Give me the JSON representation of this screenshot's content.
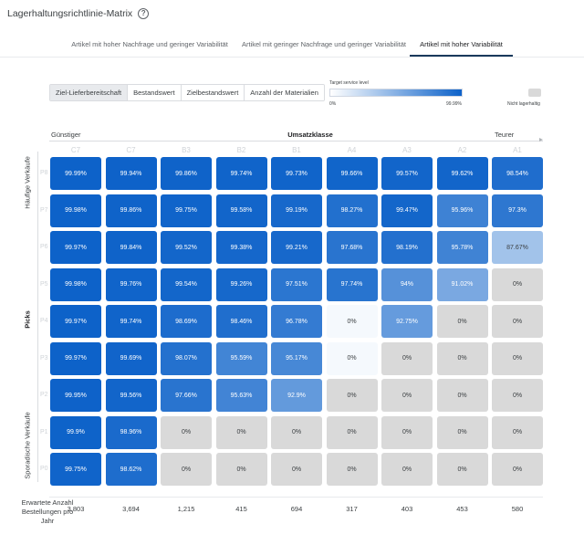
{
  "title": "Lagerhaltungsrichtlinie-Matrix",
  "help_icon": "help-circle-icon",
  "tabs": [
    {
      "label": "Artikel mit hoher Nachfrage und geringer Variabilität",
      "active": false
    },
    {
      "label": "Artikel mit geringer Nachfrage und geringer Variabilität",
      "active": false
    },
    {
      "label": "Artikel mit hoher Variabilität",
      "active": true
    }
  ],
  "metric_toggle": [
    {
      "label": "Ziel-Lieferbereitschaft",
      "active": true
    },
    {
      "label": "Bestandswert",
      "active": false
    },
    {
      "label": "Zielbestandswert",
      "active": false
    },
    {
      "label": "Anzahl der Materialien",
      "active": false
    }
  ],
  "legend": {
    "title": "Target service level",
    "min_label": "0%",
    "max_label": "99.99%",
    "na_label": "Nicht lagerhaltig",
    "color_low": "#ffffff",
    "color_high": "#0d62c9",
    "color_na": "#d9d9d9"
  },
  "x_axis": {
    "title": "Umsatzklasse",
    "low_label": "Günstiger",
    "high_label": "Teurer"
  },
  "y_axis": {
    "title": "Picks",
    "high_label": "Häufige Verkäufe",
    "low_label": "Sporadische Verkäufe"
  },
  "columns": [
    "C7",
    "C7",
    "B3",
    "B2",
    "B1",
    "A4",
    "A3",
    "A2",
    "A1"
  ],
  "rows": [
    {
      "label": "P8",
      "cells": [
        {
          "text": "99.99%",
          "value": 99.99
        },
        {
          "text": "99.94%",
          "value": 99.94
        },
        {
          "text": "99.86%",
          "value": 99.86
        },
        {
          "text": "99.74%",
          "value": 99.74
        },
        {
          "text": "99.73%",
          "value": 99.73
        },
        {
          "text": "99.66%",
          "value": 99.66
        },
        {
          "text": "99.57%",
          "value": 99.57
        },
        {
          "text": "99.62%",
          "value": 99.62
        },
        {
          "text": "98.54%",
          "value": 98.54
        }
      ]
    },
    {
      "label": "P7",
      "cells": [
        {
          "text": "99.98%",
          "value": 99.98
        },
        {
          "text": "99.86%",
          "value": 99.86
        },
        {
          "text": "99.75%",
          "value": 99.75
        },
        {
          "text": "99.58%",
          "value": 99.58
        },
        {
          "text": "99.19%",
          "value": 99.19
        },
        {
          "text": "98.27%",
          "value": 98.27
        },
        {
          "text": "99.47%",
          "value": 99.47
        },
        {
          "text": "95.96%",
          "value": 95.96
        },
        {
          "text": "97.3%",
          "value": 97.3
        }
      ]
    },
    {
      "label": "P6",
      "cells": [
        {
          "text": "99.97%",
          "value": 99.97
        },
        {
          "text": "99.84%",
          "value": 99.84
        },
        {
          "text": "99.52%",
          "value": 99.52
        },
        {
          "text": "99.38%",
          "value": 99.38
        },
        {
          "text": "99.21%",
          "value": 99.21
        },
        {
          "text": "97.68%",
          "value": 97.68
        },
        {
          "text": "98.19%",
          "value": 98.19
        },
        {
          "text": "95.78%",
          "value": 95.78
        },
        {
          "text": "87.67%",
          "value": 87.67
        }
      ]
    },
    {
      "label": "P5",
      "cells": [
        {
          "text": "99.98%",
          "value": 99.98
        },
        {
          "text": "99.76%",
          "value": 99.76
        },
        {
          "text": "99.54%",
          "value": 99.54
        },
        {
          "text": "99.26%",
          "value": 99.26
        },
        {
          "text": "97.51%",
          "value": 97.51
        },
        {
          "text": "97.74%",
          "value": 97.74
        },
        {
          "text": "94%",
          "value": 94
        },
        {
          "text": "91.02%",
          "value": 91.02
        },
        {
          "text": "0%",
          "value": null
        }
      ]
    },
    {
      "label": "P4",
      "cells": [
        {
          "text": "99.97%",
          "value": 99.97
        },
        {
          "text": "99.74%",
          "value": 99.74
        },
        {
          "text": "98.69%",
          "value": 98.69
        },
        {
          "text": "98.46%",
          "value": 98.46
        },
        {
          "text": "96.78%",
          "value": 96.78
        },
        {
          "text": "0%",
          "value": 0
        },
        {
          "text": "92.75%",
          "value": 92.75
        },
        {
          "text": "0%",
          "value": null
        },
        {
          "text": "0%",
          "value": null
        }
      ]
    },
    {
      "label": "P3",
      "cells": [
        {
          "text": "99.97%",
          "value": 99.97
        },
        {
          "text": "99.69%",
          "value": 99.69
        },
        {
          "text": "98.07%",
          "value": 98.07
        },
        {
          "text": "95.59%",
          "value": 95.59
        },
        {
          "text": "95.17%",
          "value": 95.17
        },
        {
          "text": "0%",
          "value": 0
        },
        {
          "text": "0%",
          "value": null
        },
        {
          "text": "0%",
          "value": null
        },
        {
          "text": "0%",
          "value": null
        }
      ]
    },
    {
      "label": "P2",
      "cells": [
        {
          "text": "99.95%",
          "value": 99.95
        },
        {
          "text": "99.56%",
          "value": 99.56
        },
        {
          "text": "97.66%",
          "value": 97.66
        },
        {
          "text": "95.63%",
          "value": 95.63
        },
        {
          "text": "92.9%",
          "value": 92.9
        },
        {
          "text": "0%",
          "value": null
        },
        {
          "text": "0%",
          "value": null
        },
        {
          "text": "0%",
          "value": null
        },
        {
          "text": "0%",
          "value": null
        }
      ]
    },
    {
      "label": "P1",
      "cells": [
        {
          "text": "99.9%",
          "value": 99.9
        },
        {
          "text": "98.96%",
          "value": 98.96
        },
        {
          "text": "0%",
          "value": null
        },
        {
          "text": "0%",
          "value": null
        },
        {
          "text": "0%",
          "value": null
        },
        {
          "text": "0%",
          "value": null
        },
        {
          "text": "0%",
          "value": null
        },
        {
          "text": "0%",
          "value": null
        },
        {
          "text": "0%",
          "value": null
        }
      ]
    },
    {
      "label": "P0",
      "cells": [
        {
          "text": "99.75%",
          "value": 99.75
        },
        {
          "text": "98.62%",
          "value": 98.62
        },
        {
          "text": "0%",
          "value": null
        },
        {
          "text": "0%",
          "value": null
        },
        {
          "text": "0%",
          "value": null
        },
        {
          "text": "0%",
          "value": null
        },
        {
          "text": "0%",
          "value": null
        },
        {
          "text": "0%",
          "value": null
        },
        {
          "text": "0%",
          "value": null
        }
      ]
    }
  ],
  "footer": {
    "label": "Erwartete Anzahl Bestellungen pro Jahr",
    "values": [
      "3,803",
      "3,694",
      "1,215",
      "415",
      "694",
      "317",
      "403",
      "453",
      "580"
    ]
  }
}
